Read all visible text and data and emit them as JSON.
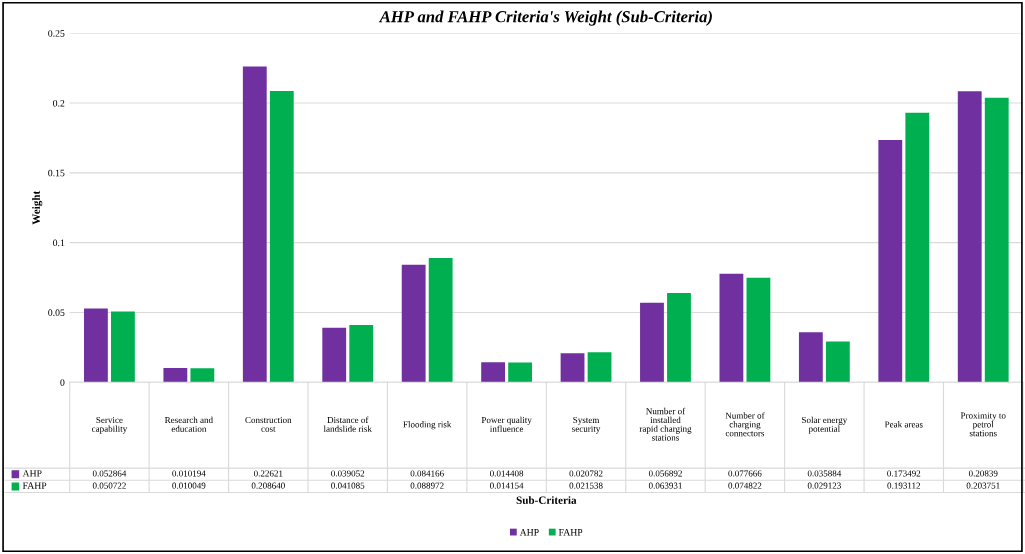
{
  "chart_data": {
    "type": "bar",
    "title": "AHP and FAHP Criteria's Weight (Sub-Criteria)",
    "xlabel": "Sub-Criteria",
    "ylabel": "Weight",
    "categories": [
      "Service capability",
      "Research and education",
      "Construction cost",
      "Distance of landslide risk",
      "Flooding risk",
      "Power quality influence",
      "System security",
      "Number of installed rapid charging stations",
      "Number of charging connectors",
      "Solar energy potential",
      "Peak areas",
      "Proximity to petrol stations"
    ],
    "series": [
      {
        "name": "AHP",
        "color": "#7030a0",
        "values": [
          0.052864,
          0.010194,
          0.22621,
          0.039052,
          0.084166,
          0.014408,
          0.020782,
          0.056892,
          0.077666,
          0.035884,
          0.173492,
          0.20839
        ],
        "value_labels": [
          "0.052864",
          "0.010194",
          "0.22621",
          "0.039052",
          "0.084166",
          "0.014408",
          "0.020782",
          "0.056892",
          "0.077666",
          "0.035884",
          "0.173492",
          "0.20839"
        ]
      },
      {
        "name": "FAHP",
        "color": "#00b050",
        "values": [
          0.050722,
          0.010049,
          0.20864,
          0.041085,
          0.088972,
          0.014154,
          0.021538,
          0.063931,
          0.074822,
          0.029123,
          0.193112,
          0.203751
        ],
        "value_labels": [
          "0.050722",
          "0.010049",
          "0.208640",
          "0.041085",
          "0.088972",
          "0.014154",
          "0.021538",
          "0.063931",
          "0.074822",
          "0.029123",
          "0.193112",
          "0.203751"
        ]
      }
    ],
    "ylim": [
      0,
      0.25
    ],
    "yticks": [
      0,
      0.05,
      {
        "value": 0.1,
        "label": "0.1"
      },
      0.15,
      {
        "value": 0.2,
        "label": "0.2"
      },
      0.25
    ],
    "grid": "y",
    "legend": "bottom"
  }
}
